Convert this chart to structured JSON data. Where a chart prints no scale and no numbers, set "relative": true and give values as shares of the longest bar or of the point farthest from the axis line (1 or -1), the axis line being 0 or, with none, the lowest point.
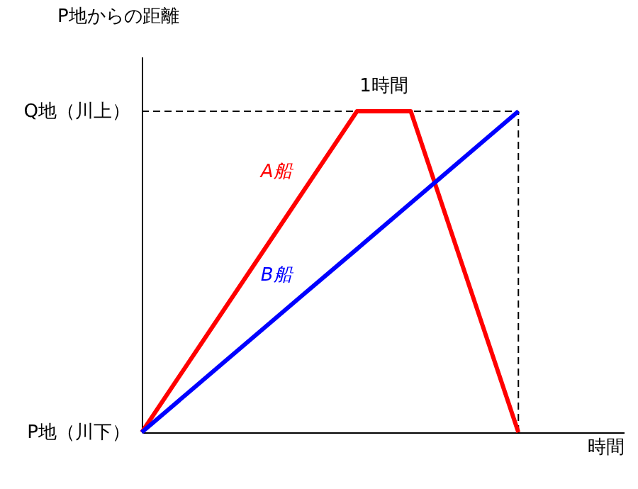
{
  "chart_data": {
    "type": "line",
    "ylabel": "P地からの距離",
    "xlabel": "時間",
    "categories": [
      null,
      null,
      null,
      null,
      null,
      null,
      null,
      null
    ],
    "relative": true,
    "tick_labels": false,
    "grid": false,
    "legend": false,
    "marker": "none",
    "line_style": "solid",
    "series": [
      {
        "name": "A船",
        "color": "#ff0000",
        "values": [
          0,
          0.25,
          0.5,
          0.75,
          1,
          1,
          0.5,
          0
        ]
      },
      {
        "name": "B船",
        "color": "#0000ff",
        "values": [
          0,
          0.143,
          0.286,
          0.429,
          0.571,
          0.714,
          0.857,
          1
        ]
      }
    ],
    "ref_lines": [
      {
        "axis": "y",
        "value": 1,
        "color": "#000000",
        "line_style": "dashed"
      },
      {
        "axis": "x",
        "color": "#000000",
        "line_style": "dashed"
      }
    ],
    "annotations": [
      "Q地（川上）",
      "P地（川下）",
      "1時間"
    ]
  }
}
